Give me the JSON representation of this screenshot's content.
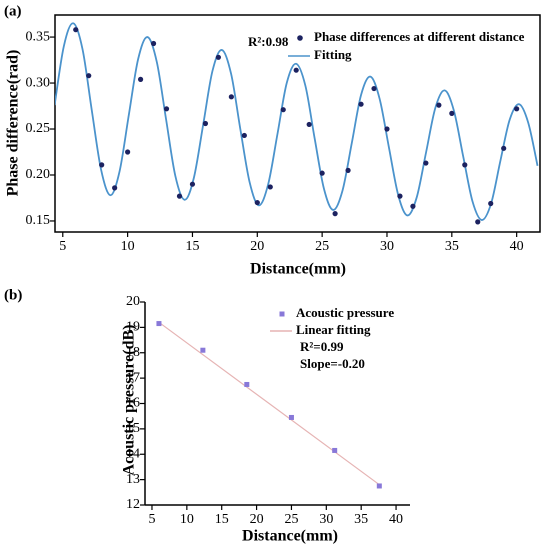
{
  "chart_data": [
    {
      "type": "scatter",
      "panel_label": "(a)",
      "x_label": "Distance(mm)",
      "y_label": "Phase difference(rad)",
      "annotations": [
        "R²:0.98"
      ],
      "xlim": [
        4.4,
        41.8
      ],
      "ylim": [
        0.138,
        0.374
      ],
      "xticks": [
        5,
        10,
        15,
        20,
        25,
        30,
        35,
        40
      ],
      "yticks": [
        {
          "value": 0.15,
          "label": "0.15"
        },
        {
          "value": 0.2,
          "label": "0.20"
        },
        {
          "value": 0.25,
          "label": "0.25"
        },
        {
          "value": 0.3,
          "label": "0.30"
        },
        {
          "value": 0.35,
          "label": "0.35"
        }
      ],
      "frame": true,
      "series": [
        {
          "name": "Phase differences at different distance",
          "style": "points",
          "color": "#1c2260",
          "x": [
            6,
            7,
            8,
            9,
            10,
            11,
            12,
            13,
            14,
            15,
            16,
            17,
            18,
            19,
            20,
            21,
            22,
            23,
            24,
            25,
            26,
            27,
            28,
            29,
            30,
            31,
            32,
            33,
            34,
            35,
            36,
            37,
            38,
            39,
            40
          ],
          "values": [
            0.358,
            0.308,
            0.211,
            0.186,
            0.225,
            0.304,
            0.343,
            0.272,
            0.177,
            0.19,
            0.256,
            0.328,
            0.285,
            0.243,
            0.17,
            0.187,
            0.271,
            0.314,
            0.255,
            0.202,
            0.158,
            0.205,
            0.277,
            0.294,
            0.25,
            0.177,
            0.166,
            0.213,
            0.276,
            0.267,
            0.211,
            0.149,
            0.169,
            0.229,
            0.272
          ]
        },
        {
          "name": "Fitting",
          "style": "line",
          "color": "#4b93cc",
          "x": [
            4.37,
            5.08,
            5.8,
            6.52,
            7.23,
            7.95,
            8.67,
            9.38,
            10.1,
            10.81,
            11.53,
            12.25,
            12.96,
            13.68,
            14.4,
            15.11,
            15.83,
            16.54,
            17.26,
            17.98,
            18.69,
            19.41,
            20.12,
            20.84,
            21.56,
            22.27,
            22.99,
            23.71,
            24.42,
            25.14,
            25.85,
            26.57,
            27.29,
            28,
            28.72,
            29.43,
            30.15,
            30.87,
            31.58,
            32.3,
            33.02,
            33.73,
            34.45,
            35.16,
            35.88,
            36.6,
            37.31,
            38.03,
            38.74,
            39.46,
            40.18,
            40.89,
            41.61
          ],
          "values": [
            0.276,
            0.34,
            0.365,
            0.337,
            0.271,
            0.206,
            0.178,
            0.204,
            0.266,
            0.326,
            0.35,
            0.323,
            0.261,
            0.199,
            0.173,
            0.197,
            0.255,
            0.313,
            0.336,
            0.31,
            0.25,
            0.192,
            0.167,
            0.19,
            0.245,
            0.3,
            0.321,
            0.297,
            0.24,
            0.185,
            0.162,
            0.183,
            0.235,
            0.287,
            0.307,
            0.283,
            0.23,
            0.178,
            0.156,
            0.176,
            0.225,
            0.273,
            0.292,
            0.27,
            0.22,
            0.171,
            0.151,
            0.169,
            0.215,
            0.26,
            0.277,
            0.257,
            0.21
          ]
        }
      ]
    },
    {
      "type": "scatter",
      "panel_label": "(b)",
      "x_label": "Distance(mm)",
      "y_label": "Acoustic pressure(dB)",
      "annotations": [
        "R²=0.99",
        "Slope=-0.20"
      ],
      "xlim": [
        4,
        42
      ],
      "ylim": [
        12,
        20
      ],
      "xticks": [
        5,
        10,
        15,
        20,
        25,
        30,
        35,
        40
      ],
      "yticks": [
        12,
        13,
        14,
        15,
        16,
        17,
        18,
        19,
        20
      ],
      "frame": false,
      "series": [
        {
          "name": "Acoustic pressure",
          "style": "squares",
          "color": "#8878d8",
          "x": [
            6,
            12.3,
            18.6,
            25,
            31.2,
            37.6
          ],
          "values": [
            19.15,
            18.1,
            16.75,
            15.45,
            14.15,
            12.75
          ]
        },
        {
          "name": "Linear fitting",
          "style": "line",
          "color": "#e6b4b4",
          "x": [
            6,
            37.6
          ],
          "values": [
            19.2,
            12.8
          ]
        }
      ]
    }
  ]
}
